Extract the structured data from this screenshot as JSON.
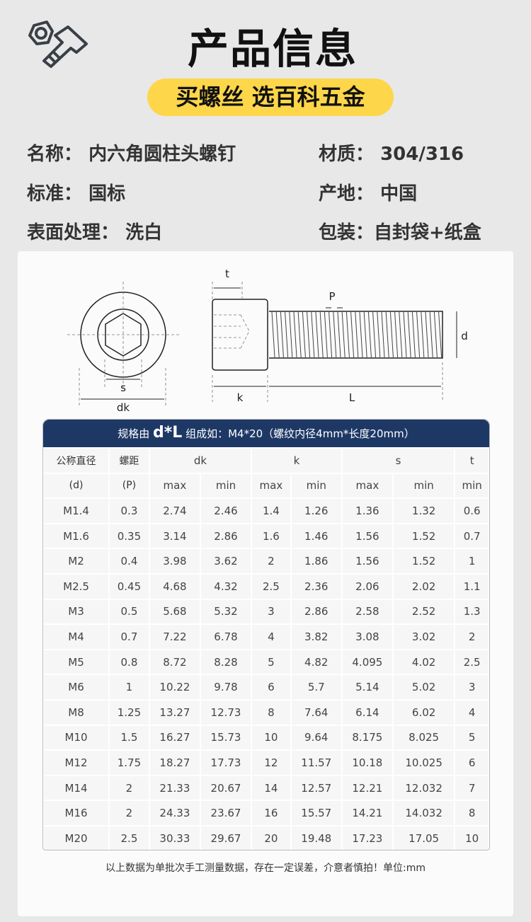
{
  "header": {
    "title": "产品信息",
    "slogan": "买螺丝  选百科五金",
    "logo_icon": "nut-bolt-icon"
  },
  "info": [
    {
      "label": "名称：",
      "value": "内六角圆柱头螺钉"
    },
    {
      "label": "材质：",
      "value": "304/316"
    },
    {
      "label": "标准：",
      "value": "国标"
    },
    {
      "label": "产地：",
      "value": "中国"
    },
    {
      "label": "表面处理：",
      "value": "洗白"
    },
    {
      "label": "包装：",
      "value": "自封袋+纸盒"
    }
  ],
  "diagram": {
    "labels": {
      "t": "t",
      "s": "s",
      "dk": "dk",
      "k": "k",
      "L": "L",
      "P": "P",
      "d": "d"
    }
  },
  "table": {
    "title_pre": "规格由",
    "title_big": "d*L",
    "title_post": "组成如：M4*20（螺纹内径4mm*长度20mm）",
    "col1": [
      "公称直径",
      "(d)"
    ],
    "col2": [
      "螺距",
      "(P)"
    ],
    "groups": [
      "dk",
      "k",
      "s",
      "t"
    ],
    "sub": [
      "max",
      "min",
      "max",
      "min",
      "max",
      "min",
      "min"
    ],
    "rows": [
      [
        "M1.4",
        "0.3",
        "2.74",
        "2.46",
        "1.4",
        "1.26",
        "1.36",
        "1.32",
        "0.6"
      ],
      [
        "M1.6",
        "0.35",
        "3.14",
        "2.86",
        "1.6",
        "1.46",
        "1.56",
        "1.52",
        "0.7"
      ],
      [
        "M2",
        "0.4",
        "3.98",
        "3.62",
        "2",
        "1.86",
        "1.56",
        "1.52",
        "1"
      ],
      [
        "M2.5",
        "0.45",
        "4.68",
        "4.32",
        "2.5",
        "2.36",
        "2.06",
        "2.02",
        "1.1"
      ],
      [
        "M3",
        "0.5",
        "5.68",
        "5.32",
        "3",
        "2.86",
        "2.58",
        "2.52",
        "1.3"
      ],
      [
        "M4",
        "0.7",
        "7.22",
        "6.78",
        "4",
        "3.82",
        "3.08",
        "3.02",
        "2"
      ],
      [
        "M5",
        "0.8",
        "8.72",
        "8.28",
        "5",
        "4.82",
        "4.095",
        "4.02",
        "2.5"
      ],
      [
        "M6",
        "1",
        "10.22",
        "9.78",
        "6",
        "5.7",
        "5.14",
        "5.02",
        "3"
      ],
      [
        "M8",
        "1.25",
        "13.27",
        "12.73",
        "8",
        "7.64",
        "6.14",
        "6.02",
        "4"
      ],
      [
        "M10",
        "1.5",
        "16.27",
        "15.73",
        "10",
        "9.64",
        "8.175",
        "8.025",
        "5"
      ],
      [
        "M12",
        "1.75",
        "18.27",
        "17.73",
        "12",
        "11.57",
        "10.18",
        "10.025",
        "6"
      ],
      [
        "M14",
        "2",
        "21.33",
        "20.67",
        "14",
        "12.57",
        "12.21",
        "12.032",
        "7"
      ],
      [
        "M16",
        "2",
        "24.33",
        "23.67",
        "16",
        "15.57",
        "14.21",
        "14.032",
        "8"
      ],
      [
        "M20",
        "2.5",
        "30.33",
        "29.67",
        "20",
        "19.48",
        "17.23",
        "17.05",
        "10"
      ]
    ]
  },
  "footer_note": "以上数据为单批次手工测量数据，存在一定误差，介意者慎拍！单位:mm"
}
